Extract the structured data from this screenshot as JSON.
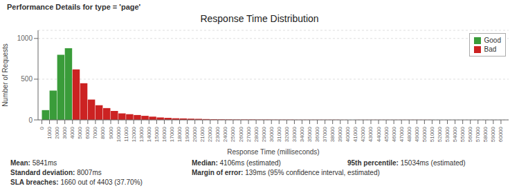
{
  "chart_data": {
    "type": "histogram",
    "title": "Response Time Distribution",
    "subtitle": "Performance Details for type = 'page'",
    "xlabel": "Response Time (milliseconds)",
    "ylabel": "Number of Requests",
    "bins": [
      0,
      1000,
      2000,
      3000,
      4000,
      5000,
      6000,
      7000,
      8000,
      9000,
      10000,
      11000,
      12000,
      13000,
      14000,
      15000,
      16000,
      17000,
      18000,
      19000,
      20000,
      21000,
      22000,
      23000,
      24000,
      25000,
      26000,
      27000,
      28000,
      29000,
      30000,
      31000,
      32000,
      33000,
      34000,
      35000,
      36000,
      37000,
      38000,
      39000,
      40000,
      41000,
      42000,
      43000,
      44000,
      45000,
      46000,
      47000,
      48000,
      49000,
      50000,
      51000,
      52000,
      53000,
      54000,
      55000,
      56000,
      57000,
      58000,
      59000,
      60000
    ],
    "series": [
      {
        "name": "Good",
        "color": "#3a9c3a",
        "values": [
          120,
          360,
          800,
          880,
          null,
          null,
          null,
          null,
          null,
          null,
          null,
          null,
          null,
          null,
          null,
          null,
          null,
          null,
          null,
          null,
          null,
          null,
          null,
          null,
          null,
          null,
          null,
          null,
          null,
          null,
          null,
          null,
          null,
          null,
          null,
          null,
          null,
          null,
          null,
          null,
          null,
          null,
          null,
          null,
          null,
          null,
          null,
          null,
          null,
          null,
          null,
          null,
          null,
          null,
          null,
          null,
          null,
          null,
          null,
          null
        ]
      },
      {
        "name": "Bad",
        "color": "#cc2222",
        "values": [
          null,
          null,
          null,
          null,
          620,
          450,
          250,
          180,
          145,
          110,
          80,
          70,
          60,
          50,
          40,
          30,
          25,
          20,
          18,
          15,
          13,
          10,
          8,
          7,
          6,
          5,
          5,
          5,
          4,
          4,
          3,
          3,
          3,
          2,
          2,
          2,
          2,
          2,
          2,
          1,
          1,
          1,
          1,
          1,
          1,
          1,
          1,
          1,
          1,
          1,
          1,
          0,
          0,
          0,
          0,
          0,
          0,
          0,
          0,
          0
        ]
      }
    ],
    "xlim": [
      -500,
      61000
    ],
    "xticks": [
      0,
      1000,
      2000,
      3000,
      4000,
      5000,
      6000,
      7000,
      8000,
      9000,
      10000,
      11000,
      12000,
      13000,
      14000,
      15000,
      16000,
      17000,
      18000,
      19000,
      20000,
      21000,
      22000,
      23000,
      24000,
      25000,
      26000,
      27000,
      28000,
      29000,
      30000,
      31000,
      32000,
      33000,
      34000,
      35000,
      36000,
      37000,
      38000,
      39000,
      40000,
      41000,
      42000,
      43000,
      44000,
      45000,
      46000,
      47000,
      48000,
      49000,
      50000,
      51000,
      52000,
      53000,
      54000,
      55000,
      56000,
      57000,
      58000,
      59000,
      60000
    ],
    "ylim": [
      0,
      1100
    ],
    "yticks": [
      0,
      500,
      1000
    ],
    "grid": "y",
    "legend": "upper right",
    "annotations": [
      [
        "Mean: 5841ms",
        "Standard deviation: 8007ms",
        "SLA breaches: 1660 out of 4403 (37.70%)"
      ],
      [
        "Median: 4106ms (estimated)",
        "Margin of error: 139ms (95% confidence interval, estimated)"
      ],
      [
        "95th percentile: 15034ms (estimated)"
      ]
    ]
  }
}
